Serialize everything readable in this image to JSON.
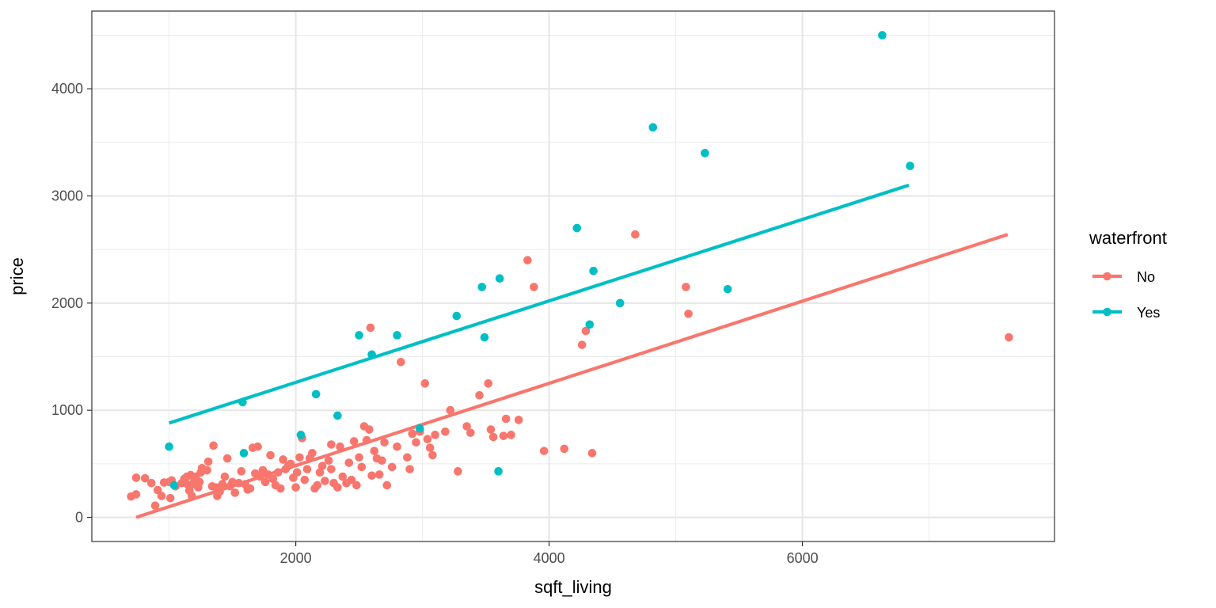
{
  "chart_data": {
    "type": "scatter",
    "title": "",
    "xlabel": "sqft_living",
    "ylabel": "price",
    "xlim": [
      390,
      7990
    ],
    "ylim": [
      -225,
      4725
    ],
    "x_ticks": [
      2000,
      4000,
      6000
    ],
    "y_ticks": [
      0,
      1000,
      2000,
      3000,
      4000
    ],
    "grid": true,
    "legend": {
      "title": "waterfront",
      "position": "right"
    },
    "series": [
      {
        "name": "No",
        "color": "#F8766D",
        "fit_line": {
          "x": [
            740,
            7620
          ],
          "y": [
            0,
            2640
          ]
        },
        "points": [
          [
            700,
            195
          ],
          [
            740,
            215
          ],
          [
            740,
            370
          ],
          [
            810,
            365
          ],
          [
            860,
            320
          ],
          [
            890,
            110
          ],
          [
            910,
            255
          ],
          [
            940,
            200
          ],
          [
            960,
            325
          ],
          [
            1000,
            330
          ],
          [
            1010,
            180
          ],
          [
            1020,
            345
          ],
          [
            1050,
            290
          ],
          [
            1100,
            320
          ],
          [
            1120,
            360
          ],
          [
            1140,
            380
          ],
          [
            1150,
            305
          ],
          [
            1160,
            250
          ],
          [
            1170,
            395
          ],
          [
            1180,
            200
          ],
          [
            1190,
            310
          ],
          [
            1200,
            345
          ],
          [
            1210,
            380
          ],
          [
            1230,
            280
          ],
          [
            1240,
            330
          ],
          [
            1250,
            420
          ],
          [
            1260,
            460
          ],
          [
            1300,
            440
          ],
          [
            1310,
            520
          ],
          [
            1340,
            290
          ],
          [
            1370,
            280
          ],
          [
            1380,
            200
          ],
          [
            1400,
            240
          ],
          [
            1420,
            310
          ],
          [
            1440,
            380
          ],
          [
            1460,
            550
          ],
          [
            1480,
            290
          ],
          [
            1500,
            330
          ],
          [
            1520,
            230
          ],
          [
            1550,
            320
          ],
          [
            1570,
            430
          ],
          [
            1600,
            310
          ],
          [
            1620,
            260
          ],
          [
            1640,
            270
          ],
          [
            1660,
            650
          ],
          [
            1680,
            410
          ],
          [
            1700,
            660
          ],
          [
            1720,
            380
          ],
          [
            1740,
            440
          ],
          [
            1760,
            330
          ],
          [
            1780,
            400
          ],
          [
            1800,
            580
          ],
          [
            1820,
            360
          ],
          [
            1840,
            300
          ],
          [
            1860,
            420
          ],
          [
            1880,
            270
          ],
          [
            1900,
            540
          ],
          [
            1920,
            450
          ],
          [
            1940,
            480
          ],
          [
            1960,
            500
          ],
          [
            1980,
            370
          ],
          [
            2000,
            280
          ],
          [
            2010,
            420
          ],
          [
            2030,
            560
          ],
          [
            2050,
            740
          ],
          [
            2070,
            350
          ],
          [
            2090,
            450
          ],
          [
            2110,
            550
          ],
          [
            2130,
            600
          ],
          [
            2150,
            270
          ],
          [
            2170,
            300
          ],
          [
            2190,
            420
          ],
          [
            2210,
            480
          ],
          [
            2230,
            340
          ],
          [
            2260,
            530
          ],
          [
            2280,
            450
          ],
          [
            2300,
            320
          ],
          [
            2330,
            280
          ],
          [
            2350,
            660
          ],
          [
            2370,
            380
          ],
          [
            2400,
            320
          ],
          [
            2420,
            510
          ],
          [
            2440,
            350
          ],
          [
            2460,
            710
          ],
          [
            2480,
            300
          ],
          [
            2500,
            560
          ],
          [
            2520,
            470
          ],
          [
            2540,
            850
          ],
          [
            2560,
            720
          ],
          [
            2580,
            820
          ],
          [
            2600,
            390
          ],
          [
            2620,
            620
          ],
          [
            2640,
            550
          ],
          [
            2660,
            400
          ],
          [
            2680,
            530
          ],
          [
            2700,
            700
          ],
          [
            2720,
            300
          ],
          [
            2760,
            470
          ],
          [
            2800,
            660
          ],
          [
            2830,
            1450
          ],
          [
            2880,
            560
          ],
          [
            2900,
            450
          ],
          [
            2920,
            780
          ],
          [
            2950,
            700
          ],
          [
            2980,
            800
          ],
          [
            3020,
            1250
          ],
          [
            3040,
            730
          ],
          [
            3060,
            650
          ],
          [
            3080,
            580
          ],
          [
            3100,
            770
          ],
          [
            3180,
            800
          ],
          [
            3220,
            1000
          ],
          [
            3280,
            430
          ],
          [
            3350,
            850
          ],
          [
            3380,
            790
          ],
          [
            3450,
            1140
          ],
          [
            3520,
            1250
          ],
          [
            3540,
            820
          ],
          [
            3560,
            750
          ],
          [
            3640,
            760
          ],
          [
            3660,
            920
          ],
          [
            3700,
            770
          ],
          [
            3760,
            910
          ],
          [
            3830,
            2400
          ],
          [
            3880,
            2150
          ],
          [
            3960,
            620
          ],
          [
            4120,
            640
          ],
          [
            4260,
            1610
          ],
          [
            4290,
            1740
          ],
          [
            4340,
            600
          ],
          [
            4680,
            2640
          ],
          [
            5080,
            2150
          ],
          [
            5100,
            1900
          ],
          [
            7630,
            1680
          ],
          [
            2280,
            680
          ],
          [
            1350,
            670
          ],
          [
            2590,
            1770
          ]
        ]
      },
      {
        "name": "Yes",
        "color": "#00BFC4",
        "fit_line": {
          "x": [
            1000,
            6840
          ],
          "y": [
            880,
            3100
          ]
        },
        "points": [
          [
            1000,
            660
          ],
          [
            1040,
            300
          ],
          [
            1580,
            1075
          ],
          [
            1590,
            600
          ],
          [
            2040,
            770
          ],
          [
            2160,
            1150
          ],
          [
            2330,
            950
          ],
          [
            2500,
            1700
          ],
          [
            2600,
            1520
          ],
          [
            2800,
            1700
          ],
          [
            2980,
            830
          ],
          [
            3270,
            1880
          ],
          [
            3470,
            2150
          ],
          [
            3490,
            1680
          ],
          [
            3600,
            430
          ],
          [
            3610,
            2230
          ],
          [
            4220,
            2700
          ],
          [
            4320,
            1800
          ],
          [
            4350,
            2300
          ],
          [
            4560,
            2000
          ],
          [
            4820,
            3640
          ],
          [
            5230,
            3400
          ],
          [
            5410,
            2130
          ],
          [
            6630,
            4500
          ],
          [
            6850,
            3280
          ]
        ]
      }
    ]
  }
}
